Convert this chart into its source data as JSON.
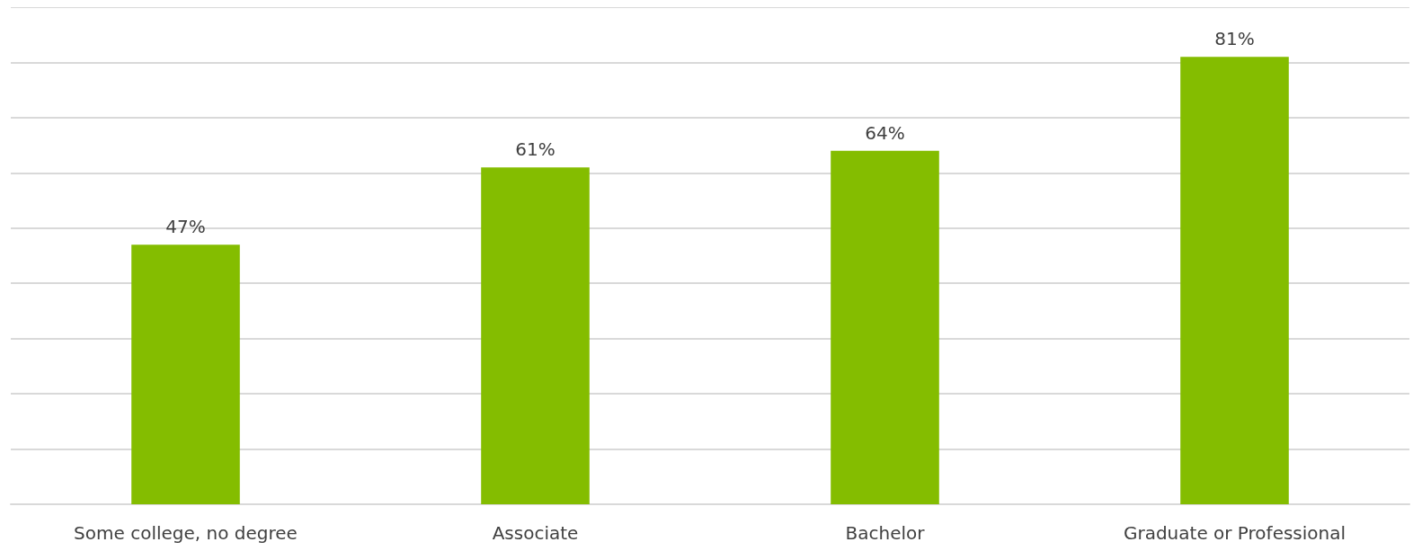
{
  "chart_data": {
    "type": "bar",
    "categories": [
      "Some college, no degree",
      "Associate",
      "Bachelor",
      "Graduate or Professional"
    ],
    "values": [
      47,
      61,
      64,
      81
    ],
    "color": "#84bd00",
    "value_labels": [
      "47%",
      "61%",
      "64%",
      "81%"
    ],
    "ylim": [
      0,
      90
    ],
    "yticks": [
      {
        "value": 0,
        "label": null
      },
      {
        "value": 10,
        "label": null
      },
      {
        "value": 20,
        "label": null
      },
      {
        "value": 30,
        "label": null
      },
      {
        "value": 40,
        "label": null
      },
      {
        "value": 50,
        "label": null
      },
      {
        "value": 60,
        "label": null
      },
      {
        "value": 70,
        "label": null
      },
      {
        "value": 80,
        "label": null
      },
      {
        "value": 90,
        "label": null
      }
    ],
    "grid": "y",
    "tick_labels": "x"
  }
}
